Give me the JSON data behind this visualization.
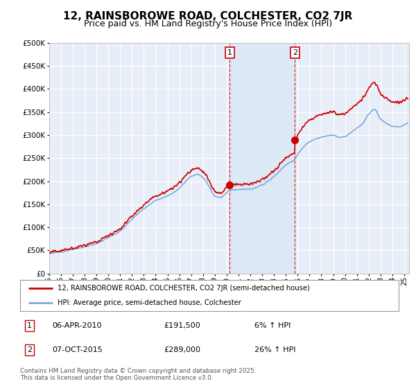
{
  "title": "12, RAINSBOROWE ROAD, COLCHESTER, CO2 7JR",
  "subtitle": "Price paid vs. HM Land Registry's House Price Index (HPI)",
  "ylim": [
    0,
    500000
  ],
  "yticks": [
    0,
    50000,
    100000,
    150000,
    200000,
    250000,
    300000,
    350000,
    400000,
    450000,
    500000
  ],
  "ytick_labels": [
    "£0",
    "£50K",
    "£100K",
    "£150K",
    "£200K",
    "£250K",
    "£300K",
    "£350K",
    "£400K",
    "£450K",
    "£500K"
  ],
  "background_color": "#ffffff",
  "plot_bg_color": "#e8eef8",
  "grid_color": "#ffffff",
  "line1_color": "#cc0000",
  "line2_color": "#7aaadd",
  "vline_color": "#cc0000",
  "vline_style": "--",
  "shade_color": "#dce8f5",
  "point1_date": 2010.27,
  "point1_value": 191500,
  "point2_date": 2015.77,
  "point2_value": 289000,
  "legend_line1": "12, RAINSBOROWE ROAD, COLCHESTER, CO2 7JR (semi-detached house)",
  "legend_line2": "HPI: Average price, semi-detached house, Colchester",
  "annotation1_date": "06-APR-2010",
  "annotation1_price": "£191,500",
  "annotation1_hpi": "6% ↑ HPI",
  "annotation2_date": "07-OCT-2015",
  "annotation2_price": "£289,000",
  "annotation2_hpi": "26% ↑ HPI",
  "footer": "Contains HM Land Registry data © Crown copyright and database right 2025.\nThis data is licensed under the Open Government Licence v3.0.",
  "title_fontsize": 11,
  "subtitle_fontsize": 9,
  "tick_fontsize": 7.5,
  "label_box_color": "#cc0000",
  "xstart": 1995,
  "xend": 2025
}
